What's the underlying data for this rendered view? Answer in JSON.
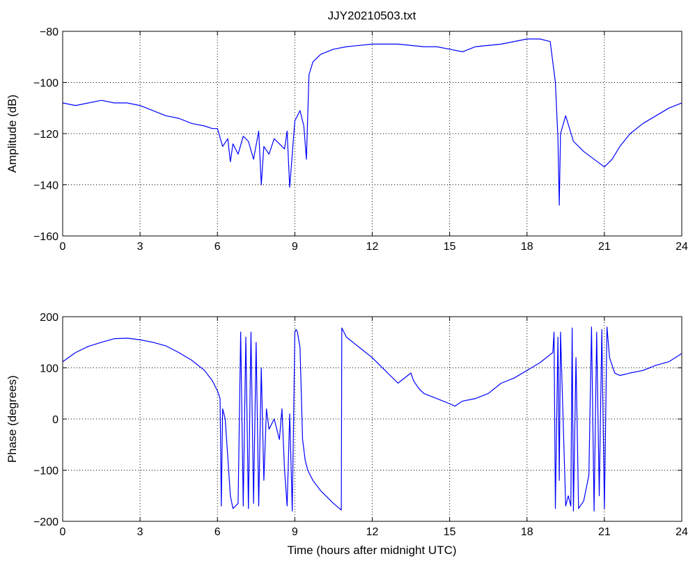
{
  "chart_data": [
    {
      "type": "line",
      "title": "JJY20210503.txt",
      "xlabel": "",
      "ylabel": "Amplitude (dB)",
      "xlim": [
        0,
        24
      ],
      "ylim": [
        -160,
        -80
      ],
      "xticks": [
        "0",
        "3",
        "6",
        "9",
        "12",
        "15",
        "18",
        "21",
        "24"
      ],
      "yticks": [
        "−80",
        "−100",
        "−120",
        "−140",
        "−160"
      ],
      "grid": true,
      "line_color": "#0000ff",
      "series": [
        {
          "x": [
            0,
            0.5,
            1,
            1.5,
            2,
            2.5,
            3,
            3.5,
            4,
            4.5,
            5,
            5.5,
            5.8,
            6.0,
            6.2,
            6.4,
            6.5,
            6.6,
            6.8,
            7.0,
            7.2,
            7.4,
            7.6,
            7.7,
            7.8,
            8.0,
            8.2,
            8.4,
            8.6,
            8.7,
            8.8,
            9.0,
            9.2,
            9.35,
            9.45,
            9.55,
            9.7,
            10.0,
            10.5,
            11,
            12,
            13,
            14,
            14.5,
            15,
            15.5,
            16,
            17,
            18,
            18.5,
            18.9,
            19.1,
            19.2,
            19.25,
            19.3,
            19.5,
            19.8,
            20.2,
            20.6,
            21.0,
            21.3,
            21.6,
            22,
            22.5,
            23,
            23.5,
            24
          ],
          "y": [
            -108,
            -109,
            -108,
            -107,
            -108,
            -108,
            -109,
            -111,
            -113,
            -114,
            -116,
            -117,
            -118,
            -118,
            -125,
            -122,
            -131,
            -124,
            -128,
            -121,
            -123,
            -130,
            -119,
            -140,
            -125,
            -128,
            -122,
            -124,
            -126,
            -119,
            -141,
            -115,
            -111,
            -117,
            -130,
            -97,
            -92,
            -89,
            -87,
            -86,
            -85,
            -85,
            -86,
            -86,
            -87,
            -88,
            -86,
            -85,
            -83,
            -83,
            -84,
            -100,
            -122,
            -148,
            -120,
            -113,
            -123,
            -127,
            -130,
            -133,
            -130,
            -125,
            -120,
            -116,
            -113,
            -110,
            -108
          ]
        }
      ]
    },
    {
      "type": "line",
      "title": "",
      "xlabel": "Time (hours after midnight UTC)",
      "ylabel": "Phase (degrees)",
      "xlim": [
        0,
        24
      ],
      "ylim": [
        -200,
        200
      ],
      "xticks": [
        "0",
        "3",
        "6",
        "9",
        "12",
        "15",
        "18",
        "21",
        "24"
      ],
      "yticks": [
        "200",
        "100",
        "0",
        "−100",
        "−200"
      ],
      "grid": true,
      "line_color": "#0000ff",
      "series": [
        {
          "x": [
            0,
            0.5,
            1,
            1.5,
            2,
            2.5,
            3,
            3.5,
            4,
            4.5,
            5,
            5.5,
            5.8,
            6.0,
            6.1,
            6.15,
            6.2,
            6.3,
            6.5,
            6.6,
            6.8,
            6.9,
            7.0,
            7.1,
            7.2,
            7.3,
            7.4,
            7.5,
            7.6,
            7.7,
            7.8,
            7.9,
            8.0,
            8.2,
            8.4,
            8.5,
            8.6,
            8.7,
            8.8,
            8.9,
            9.0,
            9.05,
            9.1,
            9.2,
            9.3,
            9.4,
            9.5,
            9.6,
            9.7,
            10.0,
            10.5,
            10.8,
            10.82,
            11.0,
            11.5,
            12,
            12.5,
            13,
            13.5,
            13.6,
            13.8,
            14,
            14.5,
            15,
            15.2,
            15.5,
            16,
            16.5,
            17,
            17.5,
            18,
            18.5,
            19,
            19.05,
            19.1,
            19.2,
            19.25,
            19.3,
            19.5,
            19.6,
            19.7,
            19.75,
            19.8,
            19.9,
            20.0,
            20.2,
            20.4,
            20.5,
            20.6,
            20.7,
            20.8,
            20.9,
            21.0,
            21.1,
            21.2,
            21.4,
            21.6,
            22,
            22.5,
            23,
            23.5,
            24
          ],
          "y": [
            112,
            130,
            142,
            150,
            157,
            158,
            155,
            150,
            143,
            130,
            115,
            95,
            75,
            55,
            40,
            -170,
            20,
            0,
            -150,
            -175,
            -165,
            170,
            -170,
            160,
            -175,
            170,
            -165,
            150,
            -170,
            100,
            -120,
            20,
            -20,
            0,
            -40,
            20,
            -100,
            -170,
            10,
            -180,
            170,
            175,
            170,
            140,
            -40,
            -80,
            -100,
            -110,
            -120,
            -140,
            -165,
            -178,
            178,
            160,
            140,
            120,
            95,
            70,
            90,
            75,
            60,
            50,
            40,
            30,
            25,
            35,
            40,
            50,
            70,
            80,
            95,
            110,
            130,
            170,
            -175,
            160,
            -120,
            170,
            -170,
            -150,
            -170,
            178,
            -180,
            120,
            -175,
            -160,
            -110,
            180,
            -180,
            170,
            -150,
            175,
            -175,
            180,
            120,
            90,
            85,
            90,
            95,
            105,
            112,
            128
          ]
        }
      ]
    }
  ]
}
